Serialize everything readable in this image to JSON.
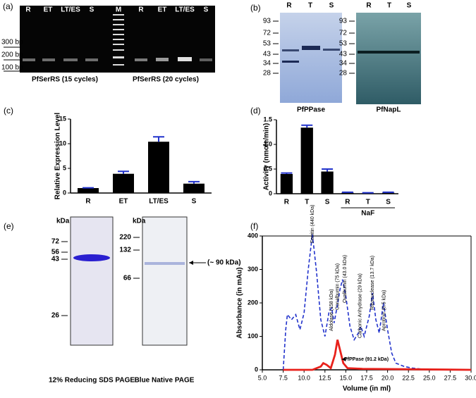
{
  "panels": {
    "a": {
      "label": "(a)",
      "lanes": [
        "R",
        "ET",
        "LT/ES",
        "S",
        "M",
        "R",
        "ET",
        "LT/ES",
        "S"
      ],
      "markers": [
        "300 bp",
        "200 bp",
        "100 bp"
      ],
      "captions": [
        "PfSerRS  (15 cycles)",
        "PfSerRS  (20 cycles)"
      ]
    },
    "b": {
      "label": "(b)",
      "blots": [
        {
          "lanes": [
            "R",
            "T",
            "S"
          ],
          "markers": [
            "93",
            "72",
            "53",
            "43",
            "34",
            "28"
          ],
          "caption": "PfPPase"
        },
        {
          "lanes": [
            "R",
            "T",
            "S"
          ],
          "markers": [
            "93",
            "72",
            "53",
            "43",
            "34",
            "28"
          ],
          "caption": "PfNapL"
        }
      ]
    },
    "e": {
      "label": "(e)",
      "gels": [
        {
          "unit": "kDa",
          "markers": [
            "72",
            "56",
            "43",
            "26"
          ],
          "caption": "12% Reducing SDS PAGE"
        },
        {
          "unit": "kDa",
          "markers": [
            "220",
            "132",
            "66"
          ],
          "caption": "Blue Native PAGE",
          "annotation": "(~ 90 kDa)"
        }
      ]
    }
  },
  "chart_data": [
    {
      "type": "bar",
      "label": "(c)",
      "y_label": "Relative Expression Level",
      "categories": [
        "R",
        "ET",
        "LT/ES",
        "S"
      ],
      "values": [
        1,
        3.9,
        10.4,
        1.9
      ],
      "errors": [
        0.05,
        0.5,
        1.0,
        0.4
      ],
      "color": "#000000",
      "error_color": "#2233cc",
      "ylim": [
        0,
        15
      ],
      "yticks": [
        0,
        5,
        10,
        15
      ]
    },
    {
      "type": "bar",
      "label": "(d)",
      "y_label": "Activity (nmole/min)",
      "categories": [
        "R",
        "T",
        "S",
        "R",
        "T",
        "S"
      ],
      "group_label": "NaF",
      "values": [
        0.4,
        1.34,
        0.45,
        0.02,
        0.01,
        0.02
      ],
      "errors": [
        0.02,
        0.05,
        0.05,
        0.01,
        0.01,
        0.01
      ],
      "color": "#000000",
      "error_color": "#2233cc",
      "ylim": [
        0,
        1.5
      ],
      "yticks": [
        0,
        0.5,
        {
          "value": 1,
          "label": "1.0"
        },
        1.5
      ]
    },
    {
      "type": "line",
      "label": "(f)",
      "x_label": "Volume (in ml)",
      "y_label": "Absorbance (in mAu)",
      "xlim": [
        5,
        30
      ],
      "ylim": [
        0,
        400
      ],
      "xticks": [
        {
          "value": 5,
          "label": "5.0"
        },
        {
          "value": 7.5,
          "label": "7.5"
        },
        {
          "value": 10,
          "label": "10.0"
        },
        {
          "value": 12.5,
          "label": "12.5"
        },
        {
          "value": 15,
          "label": "15.0"
        },
        {
          "value": 17.5,
          "label": "17.5"
        },
        {
          "value": 20,
          "label": "20.0"
        },
        {
          "value": 22.5,
          "label": "22.5"
        },
        {
          "value": 25,
          "label": "25.0"
        },
        {
          "value": 27.5,
          "label": "27.5"
        },
        {
          "value": 30,
          "label": "30.0"
        }
      ],
      "yticks": [
        0,
        100,
        200,
        300,
        400
      ],
      "series": [
        {
          "color": "#2233cc",
          "dashed": true,
          "x": [
            7.5,
            7.8,
            8.0,
            8.5,
            9.0,
            9.5,
            10.0,
            10.5,
            11.0,
            11.5,
            12.0,
            12.5,
            13.0,
            13.3,
            13.6,
            14.0,
            14.3,
            14.6,
            15.0,
            15.5,
            16.0,
            16.5,
            16.8,
            17.2,
            17.8,
            18.2,
            18.6,
            19.0,
            19.5,
            20.0,
            20.5,
            21.0,
            22.0,
            23.0,
            25.0,
            30.0
          ],
          "values": [
            0,
            120,
            165,
            150,
            165,
            120,
            170,
            300,
            405,
            290,
            150,
            100,
            175,
            185,
            140,
            195,
            240,
            270,
            220,
            130,
            90,
            110,
            130,
            100,
            160,
            230,
            150,
            110,
            200,
            120,
            50,
            20,
            10,
            5,
            0,
            0
          ]
        },
        {
          "color": "#e8211b",
          "dashed": false,
          "x": [
            7.5,
            11.0,
            12.0,
            12.3,
            12.7,
            13.2,
            13.7,
            14.0,
            14.3,
            14.7,
            15.2,
            17.0,
            30.0
          ],
          "values": [
            0,
            0,
            10,
            20,
            15,
            5,
            45,
            90,
            60,
            20,
            5,
            3,
            0
          ]
        }
      ],
      "annotations": [
        "Ferritin (440 kDa)",
        "Aldolase (158 kDa)",
        "Conalbumin (75 kDa)",
        "Ovalbumin (43.0 kDa)",
        "Carbonic Anhydrase (29 kDa)",
        "Ribonuclease (13.7 kDa)",
        "Aprotinin (6.5 kDa)",
        "PfPPase (91.2 kDa)"
      ]
    }
  ]
}
